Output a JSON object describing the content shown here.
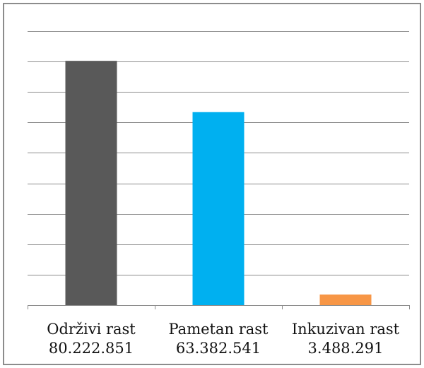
{
  "chart_data": {
    "type": "bar",
    "title": "",
    "xlabel": "",
    "ylabel": "",
    "categories": [
      "Održivi rast",
      "Pametan rast",
      "Inkuzivan rast"
    ],
    "value_labels": [
      "80.222.851",
      "63.382.541",
      "3.488.291"
    ],
    "values": [
      80222851,
      63382541,
      3488291
    ],
    "colors": [
      "#595959",
      "#00b0f0",
      "#f79646"
    ],
    "ylim": [
      0,
      90000000
    ],
    "grid_step": 10000000,
    "grid": true,
    "legend": "none",
    "y_tick_labels_shown": false
  }
}
